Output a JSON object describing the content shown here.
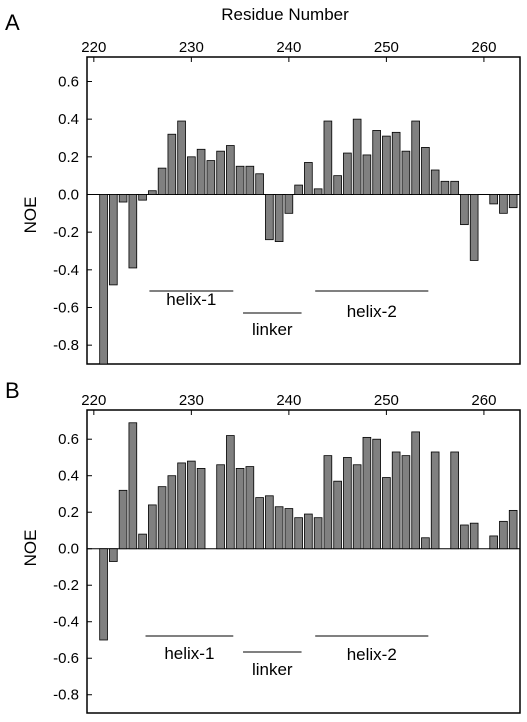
{
  "figure_title": "Residue Number",
  "chart_data": [
    {
      "type": "bar",
      "panel": "A",
      "xlabel": "Residue Number",
      "ylabel": "NOE",
      "xlim": [
        219.3,
        263.7
      ],
      "ylim": [
        -0.9,
        0.73
      ],
      "xticks": [
        220,
        230,
        240,
        250,
        260
      ],
      "yticks": [
        -0.8,
        -0.6,
        -0.4,
        -0.2,
        0.0,
        0.2,
        0.4,
        0.6
      ],
      "ytick_labels": [
        "-0.8",
        "-0.6",
        "-0.4",
        "-0.2",
        "0.0",
        "0.2",
        "0.4",
        "0.6"
      ],
      "x": [
        221,
        222,
        223,
        224,
        225,
        226,
        227,
        228,
        229,
        230,
        231,
        232,
        233,
        234,
        235,
        236,
        237,
        238,
        239,
        240,
        241,
        242,
        243,
        244,
        245,
        246,
        247,
        248,
        249,
        250,
        251,
        252,
        253,
        254,
        255,
        256,
        257,
        258,
        259,
        261,
        262,
        263
      ],
      "values": [
        -0.9,
        -0.48,
        -0.04,
        -0.39,
        -0.03,
        0.02,
        0.14,
        0.32,
        0.39,
        0.2,
        0.24,
        0.18,
        0.23,
        0.26,
        0.15,
        0.15,
        0.11,
        -0.24,
        -0.25,
        -0.1,
        0.05,
        0.17,
        0.03,
        0.39,
        0.1,
        0.22,
        0.4,
        0.21,
        0.34,
        0.31,
        0.33,
        0.23,
        0.39,
        0.25,
        0.13,
        0.07,
        0.07,
        -0.16,
        -0.35,
        -0.05,
        -0.1,
        -0.07
      ],
      "annotations": [
        {
          "label": "helix-1",
          "x_start": 225.7,
          "x_end": 234.3
        },
        {
          "label": "linker",
          "x_start": 235.3,
          "x_end": 241.3
        },
        {
          "label": "helix-2",
          "x_start": 242.7,
          "x_end": 254.3
        }
      ]
    },
    {
      "type": "bar",
      "panel": "B",
      "xlabel": "",
      "ylabel": "NOE",
      "xlim": [
        219.3,
        263.7
      ],
      "ylim": [
        -0.9,
        0.76
      ],
      "xticks": [
        220,
        230,
        240,
        250,
        260
      ],
      "yticks": [
        -0.8,
        -0.6,
        -0.4,
        -0.2,
        0.0,
        0.2,
        0.4,
        0.6
      ],
      "ytick_labels": [
        "-0.8",
        "-0.6",
        "-0.4",
        "-0.2",
        "0.0",
        "0.2",
        "0.4",
        "0.6"
      ],
      "x": [
        221,
        222,
        223,
        224,
        225,
        226,
        227,
        228,
        229,
        230,
        231,
        233,
        234,
        235,
        236,
        237,
        238,
        239,
        240,
        241,
        242,
        243,
        244,
        245,
        246,
        247,
        248,
        249,
        250,
        251,
        252,
        253,
        254,
        255,
        257,
        258,
        259,
        261,
        262,
        263
      ],
      "values": [
        -0.5,
        -0.07,
        0.32,
        0.69,
        0.08,
        0.24,
        0.34,
        0.4,
        0.47,
        0.48,
        0.44,
        0.46,
        0.62,
        0.44,
        0.45,
        0.28,
        0.29,
        0.23,
        0.22,
        0.17,
        0.19,
        0.17,
        0.51,
        0.37,
        0.5,
        0.46,
        0.61,
        0.6,
        0.39,
        0.53,
        0.51,
        0.64,
        0.06,
        0.53,
        0.53,
        0.13,
        0.14,
        0.07,
        0.15,
        0.21
      ],
      "annotations": [
        {
          "label": "helix-1",
          "x_start": 225.3,
          "x_end": 234.3
        },
        {
          "label": "linker",
          "x_start": 235.3,
          "x_end": 241.3
        },
        {
          "label": "helix-2",
          "x_start": 242.7,
          "x_end": 254.3
        }
      ]
    }
  ]
}
